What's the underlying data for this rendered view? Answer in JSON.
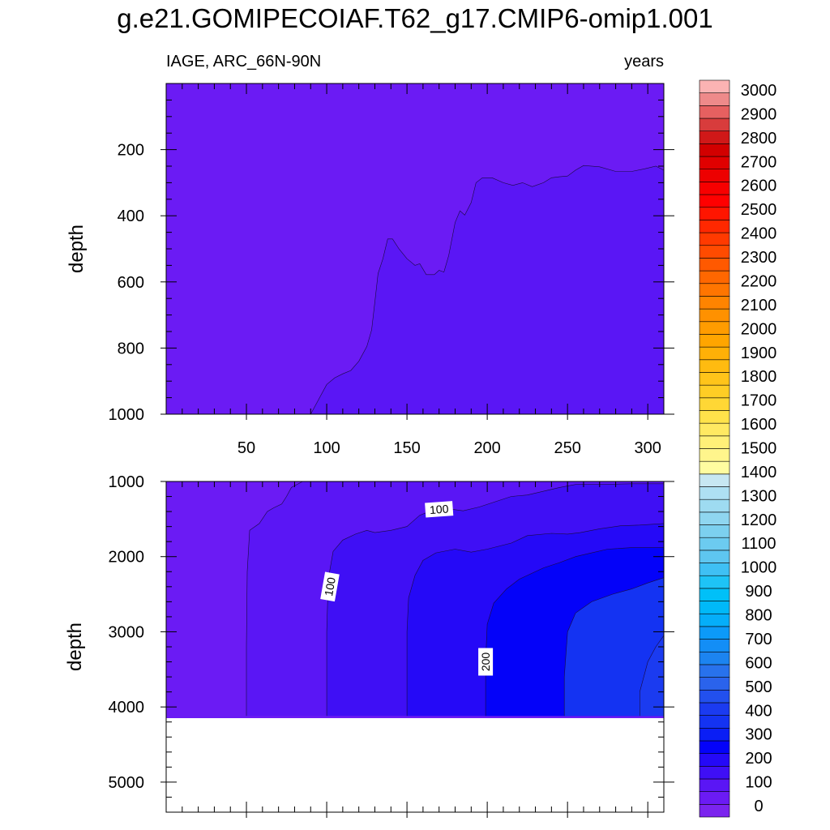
{
  "title": "g.e21.GOMIPECOIAF.T62_g17.CMIP6-omip1.001",
  "chart_data": {
    "type": "heatmap",
    "title": "g.e21.GOMIPECOIAF.T62_g17.CMIP6-omip1.001",
    "variable": "IAGE, ARC_66N-90N",
    "units": "years",
    "xlim": [
      0,
      310
    ],
    "x_ticks": [
      50,
      100,
      150,
      200,
      250,
      300
    ],
    "x_tick_labels": [
      "50",
      "100",
      "150",
      "200",
      "250",
      "300"
    ],
    "panels": [
      {
        "name": "upper",
        "ylabel": "depth",
        "ylim": [
          0,
          1000
        ],
        "y_ticks": [
          200,
          400,
          600,
          800,
          1000
        ],
        "y_tick_labels": [
          "200",
          "400",
          "600",
          "800",
          "1000"
        ],
        "fill_color": "#6b1bf4",
        "regions": [
          {
            "level": 50,
            "color": "#5a16f5",
            "boundary": [
              [
                90,
                1000
              ],
              [
                95,
                955
              ],
              [
                100,
                910
              ],
              [
                105,
                890
              ],
              [
                110,
                878
              ],
              [
                115,
                868
              ],
              [
                120,
                840
              ],
              [
                125,
                795
              ],
              [
                128,
                745
              ],
              [
                130,
                660
              ],
              [
                132,
                575
              ],
              [
                135,
                530
              ],
              [
                138,
                470
              ],
              [
                141,
                470
              ],
              [
                145,
                500
              ],
              [
                150,
                530
              ],
              [
                155,
                550
              ],
              [
                158,
                545
              ],
              [
                162,
                578
              ],
              [
                167,
                578
              ],
              [
                170,
                565
              ],
              [
                173,
                570
              ],
              [
                176,
                520
              ],
              [
                180,
                420
              ],
              [
                183,
                385
              ],
              [
                186,
                398
              ],
              [
                190,
                360
              ],
              [
                193,
                300
              ],
              [
                197,
                285
              ],
              [
                203,
                285
              ],
              [
                210,
                300
              ],
              [
                216,
                308
              ],
              [
                222,
                300
              ],
              [
                228,
                312
              ],
              [
                235,
                300
              ],
              [
                240,
                285
              ],
              [
                245,
                282
              ],
              [
                250,
                280
              ],
              [
                255,
                262
              ],
              [
                260,
                248
              ],
              [
                270,
                252
              ],
              [
                280,
                266
              ],
              [
                290,
                266
              ],
              [
                298,
                258
              ],
              [
                305,
                250
              ],
              [
                310,
                262
              ]
            ]
          }
        ]
      },
      {
        "name": "lower",
        "ylabel": "depth",
        "ylim": [
          1000,
          5400
        ],
        "y_ticks": [
          1000,
          2000,
          3000,
          4000,
          5000
        ],
        "y_tick_labels": [
          "1000",
          "2000",
          "3000",
          "4000",
          "5000"
        ],
        "bottom_of_data": 4120,
        "fill_color": "#6b1bf4",
        "regions": [
          {
            "level": 50,
            "color": "#5a16f5",
            "boundary": [
              [
                50,
                4120
              ],
              [
                50,
                3200
              ],
              [
                50.5,
                2200
              ],
              [
                52,
                1650
              ],
              [
                58,
                1560
              ],
              [
                63,
                1400
              ],
              [
                67,
                1350
              ],
              [
                72,
                1300
              ],
              [
                75,
                1200
              ],
              [
                78,
                1080
              ],
              [
                85,
                1000
              ],
              [
                310,
                1000
              ]
            ]
          },
          {
            "level": 100,
            "color": "#3f0ff5",
            "boundary": [
              [
                100,
                4120
              ],
              [
                100,
                3000
              ],
              [
                101,
                2300
              ],
              [
                104,
                1930
              ],
              [
                110,
                1780
              ],
              [
                118,
                1700
              ],
              [
                125,
                1650
              ],
              [
                130,
                1680
              ],
              [
                140,
                1650
              ],
              [
                150,
                1600
              ],
              [
                158,
                1450
              ],
              [
                165,
                1390
              ],
              [
                175,
                1360
              ],
              [
                185,
                1390
              ],
              [
                195,
                1340
              ],
              [
                205,
                1270
              ],
              [
                215,
                1200
              ],
              [
                225,
                1180
              ],
              [
                235,
                1130
              ],
              [
                245,
                1080
              ],
              [
                255,
                1040
              ],
              [
                270,
                1040
              ],
              [
                290,
                1030
              ],
              [
                310,
                1030
              ]
            ]
          },
          {
            "level": 150,
            "color": "#2509f7",
            "boundary": [
              [
                150,
                4120
              ],
              [
                150,
                3000
              ],
              [
                151,
                2550
              ],
              [
                155,
                2250
              ],
              [
                160,
                2050
              ],
              [
                168,
                1950
              ],
              [
                180,
                1900
              ],
              [
                190,
                1940
              ],
              [
                200,
                1900
              ],
              [
                215,
                1820
              ],
              [
                225,
                1720
              ],
              [
                240,
                1690
              ],
              [
                250,
                1700
              ],
              [
                258,
                1680
              ],
              [
                270,
                1630
              ],
              [
                283,
                1590
              ],
              [
                295,
                1580
              ],
              [
                310,
                1560
              ]
            ]
          },
          {
            "level": 200,
            "color": "#0402f9",
            "boundary": [
              [
                199,
                4120
              ],
              [
                199,
                3400
              ],
              [
                200,
                2900
              ],
              [
                204,
                2620
              ],
              [
                212,
                2430
              ],
              [
                220,
                2300
              ],
              [
                235,
                2150
              ],
              [
                245,
                2080
              ],
              [
                255,
                2000
              ],
              [
                265,
                1950
              ],
              [
                275,
                1900
              ],
              [
                290,
                1880
              ],
              [
                310,
                1880
              ]
            ]
          },
          {
            "level": 250,
            "color": "#1433f2",
            "boundary": [
              [
                248,
                4120
              ],
              [
                248,
                3600
              ],
              [
                250,
                3000
              ],
              [
                255,
                2750
              ],
              [
                265,
                2600
              ],
              [
                278,
                2500
              ],
              [
                290,
                2430
              ],
              [
                300,
                2350
              ],
              [
                310,
                2280
              ]
            ]
          },
          {
            "level": 300,
            "color": "#1b3bf0",
            "boundary": [
              [
                295,
                4120
              ],
              [
                295,
                3800
              ],
              [
                300,
                3400
              ],
              [
                305,
                3200
              ],
              [
                310,
                3050
              ]
            ]
          }
        ],
        "contour_labels": [
          {
            "text": "100",
            "x": 170,
            "depth": 1370,
            "angle": -4
          },
          {
            "text": "100",
            "x": 102,
            "depth": 2400,
            "angle": -80
          },
          {
            "text": "200",
            "x": 199,
            "depth": 3400,
            "angle": -90
          }
        ]
      }
    ],
    "colorbar": {
      "levels": [
        0,
        100,
        200,
        300,
        400,
        500,
        600,
        700,
        800,
        900,
        1000,
        1100,
        1200,
        1300,
        1400,
        1500,
        1600,
        1700,
        1800,
        1900,
        2000,
        2100,
        2200,
        2300,
        2400,
        2500,
        2600,
        2700,
        2800,
        2900,
        3000
      ],
      "labels": [
        "0",
        "100",
        "200",
        "300",
        "400",
        "500",
        "600",
        "700",
        "800",
        "900",
        "1000",
        "1100",
        "1200",
        "1300",
        "1400",
        "1500",
        "1600",
        "1700",
        "1800",
        "1900",
        "2000",
        "2100",
        "2200",
        "2300",
        "2400",
        "2500",
        "2600",
        "2700",
        "2800",
        "2900",
        "3000"
      ],
      "colors": [
        "#7b24ee",
        "#6b1bf4",
        "#5a16f5",
        "#3f0ff5",
        "#2509f7",
        "#0402f9",
        "#0a1ef5",
        "#1433f2",
        "#1b3bf0",
        "#2250ee",
        "#2a63ec",
        "#2872ec",
        "#1c84f0",
        "#138ef6",
        "#0c9af8",
        "#05aef9",
        "#00b9f8",
        "#00c0f8",
        "#1ec3f6",
        "#3fc0f4",
        "#5ec6f0",
        "#6ccbf0",
        "#7cd0ef",
        "#8fd6f0",
        "#9edbf1",
        "#aee0f3",
        "#c7e7f2",
        "#fffca0",
        "#fff58c",
        "#fff078",
        "#ffe962",
        "#ffe24a",
        "#ffd735",
        "#ffcd25",
        "#ffc41a",
        "#ffbb10",
        "#ffb007",
        "#ffa500",
        "#ff9c00",
        "#ff9100",
        "#ff8400",
        "#ff7500",
        "#ff6700",
        "#ff5900",
        "#ff4b00",
        "#ff3a00",
        "#ff2800",
        "#ff1500",
        "#ff0000",
        "#f70000",
        "#ed0000",
        "#e00000",
        "#d20000",
        "#d01818",
        "#d83c3c",
        "#e66060",
        "#ee8a8a",
        "#fbb3b3"
      ]
    }
  }
}
